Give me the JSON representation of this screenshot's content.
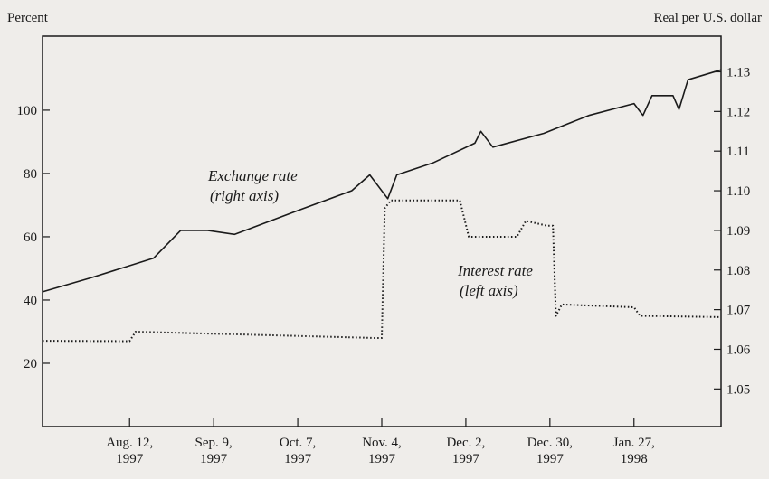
{
  "chart_data": {
    "type": "line",
    "y_label": "Percent",
    "y2_label": "Real per U.S. dollar",
    "annotations": [
      {
        "lines": [
          "Exchange rate",
          "(right axis)"
        ]
      },
      {
        "lines": [
          "Interest rate",
          "(left axis)"
        ]
      }
    ],
    "xlim": [
      "1997-07-14",
      "1998-02-25"
    ],
    "xticks": [
      {
        "value": "1997-08-12",
        "label": [
          "Aug. 12,",
          "1997"
        ]
      },
      {
        "value": "1997-09-09",
        "label": [
          "Sep. 9,",
          "1997"
        ]
      },
      {
        "value": "1997-10-07",
        "label": [
          "Oct. 7,",
          "1997"
        ]
      },
      {
        "value": "1997-11-04",
        "label": [
          "Nov. 4,",
          "1997"
        ]
      },
      {
        "value": "1997-12-02",
        "label": [
          "Dec. 2,",
          "1997"
        ]
      },
      {
        "value": "1997-12-30",
        "label": [
          "Dec. 30,",
          "1997"
        ]
      },
      {
        "value": "1998-01-27",
        "label": [
          "Jan. 27,",
          "1998"
        ]
      }
    ],
    "ylim": [
      0,
      123.4
    ],
    "yticks": [
      20,
      40,
      60,
      80,
      100
    ],
    "y2lim": [
      1.0405,
      1.139
    ],
    "y2ticks": [
      1.05,
      1.06,
      1.07,
      1.08,
      1.09,
      {
        "value": 1.1,
        "label": "1.10"
      },
      1.11,
      1.12,
      1.13
    ],
    "series": [
      {
        "name": "Exchange rate",
        "axis": "y2",
        "color": "#1a1a1a",
        "style": "solid",
        "x": [
          "1997-07-14",
          "1997-07-30",
          "1997-08-20",
          "1997-08-29",
          "1997-09-07",
          "1997-09-16",
          "1997-10-07",
          "1997-10-25",
          "1997-10-31",
          "1997-11-06",
          "1997-11-09",
          "1997-11-21",
          "1997-12-05",
          "1997-12-07",
          "1997-12-11",
          "1997-12-28",
          "1998-01-12",
          "1998-01-27",
          "1998-01-30",
          "1998-02-02",
          "1998-02-09",
          "1998-02-11",
          "1998-02-14",
          "1998-02-25"
        ],
        "values": [
          1.0745,
          1.078,
          1.083,
          1.09,
          1.09,
          1.089,
          1.095,
          1.1,
          1.104,
          1.098,
          1.104,
          1.107,
          1.112,
          1.115,
          1.111,
          1.1145,
          1.119,
          1.122,
          1.119,
          1.124,
          1.124,
          1.1205,
          1.128,
          1.1305
        ]
      },
      {
        "name": "Interest rate",
        "axis": "y",
        "color": "#1a1a1a",
        "style": "dotted",
        "x": [
          "1997-07-14",
          "1997-08-12",
          "1997-08-14",
          "1997-11-02",
          "1997-11-04",
          "1997-11-05",
          "1997-11-07",
          "1997-11-30",
          "1997-12-03",
          "1997-12-19",
          "1997-12-22",
          "1997-12-29",
          "1997-12-31",
          "1998-01-01",
          "1998-01-03",
          "1998-01-27",
          "1998-01-29",
          "1998-02-25"
        ],
        "values": [
          27.1,
          27,
          30,
          28,
          28,
          69,
          71.5,
          71.5,
          60,
          60,
          65,
          63.5,
          63.5,
          35,
          38.6,
          37.7,
          35,
          34.6
        ]
      }
    ]
  }
}
